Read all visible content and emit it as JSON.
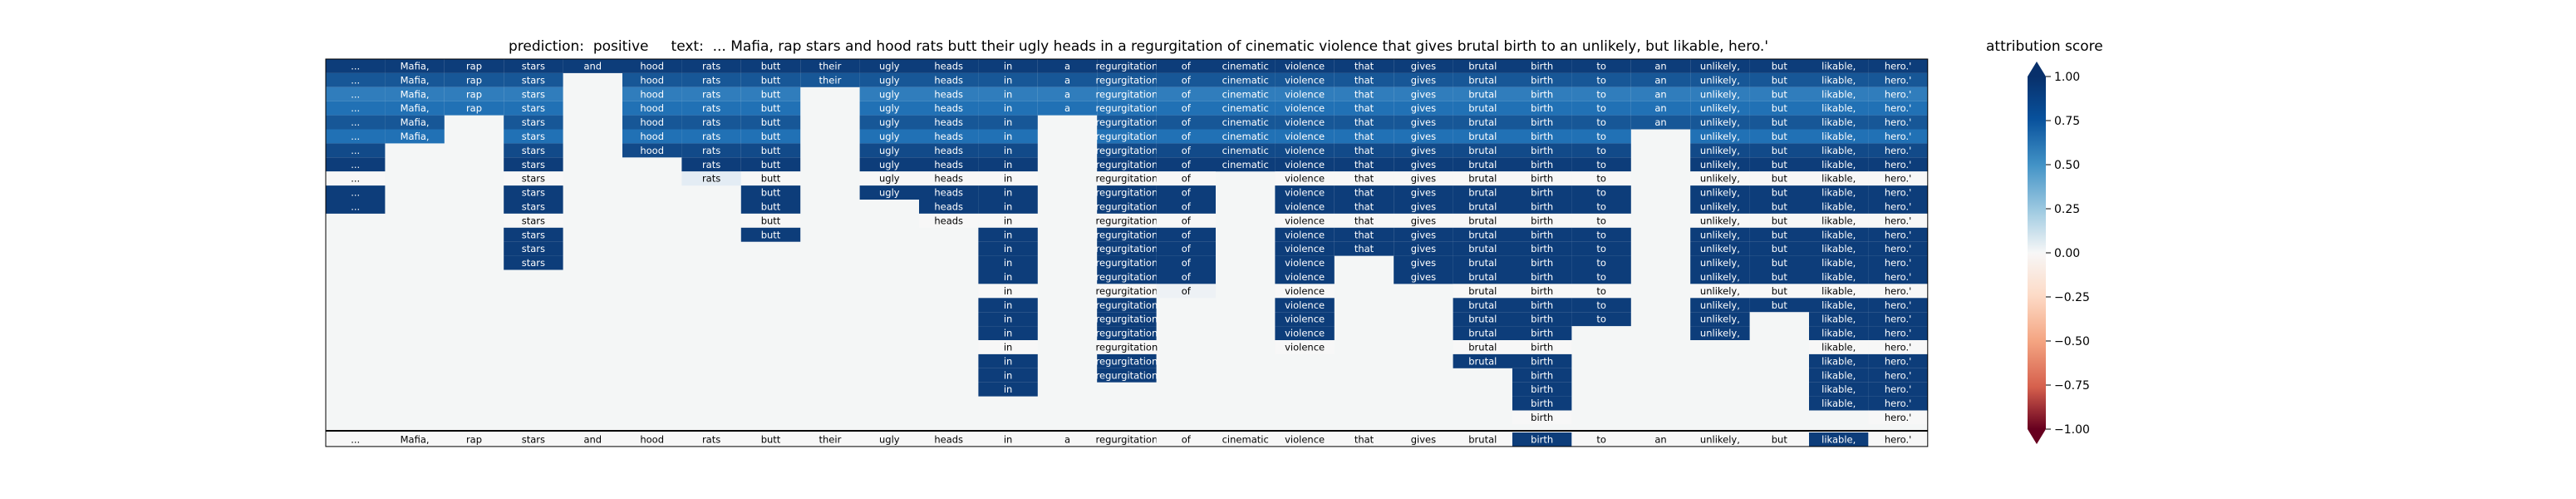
{
  "title": "prediction:  positive     text:  ... Mafia, rap stars and hood rats butt their ugly heads in a regurgitation of cinematic violence that gives brutal birth to an unlikely, but likable, hero.'",
  "colorbar": {
    "label": "attribution score",
    "ticks": [
      "1.00",
      "0.75",
      "0.50",
      "0.25",
      "0.00",
      "−0.25",
      "−0.50",
      "−0.75",
      "−1.00"
    ],
    "range": [
      -1,
      1
    ],
    "colors": {
      "positive": "#08306b",
      "mid": "#f7f7f7",
      "negative": "#67001f"
    }
  },
  "chart_data": {
    "type": "heatmap",
    "title": "prediction:  positive     text:  ... Mafia, rap stars and hood rats butt their ugly heads in a regurgitation of cinematic violence that gives brutal birth to an unlikely, but likable, hero.'",
    "tokens": [
      "...",
      "Mafia,",
      "rap",
      "stars",
      "and",
      "hood",
      "rats",
      "butt",
      "their",
      "ugly",
      "heads",
      "in",
      "a",
      "regurgitation",
      "of",
      "cinematic",
      "violence",
      "that",
      "gives",
      "brutal",
      "birth",
      "to",
      "an",
      "unlikely,",
      "but",
      "likable,",
      "hero.'"
    ],
    "rows": [
      [
        "...:0.95",
        "Mafia,:0.95",
        "rap:0.95",
        "stars:0.95",
        "and:0.95",
        "hood:0.95",
        "rats:0.95",
        "butt:0.95",
        "their:0.95",
        "ugly:0.95",
        "heads:0.95",
        "in:0.95",
        "a:0.95",
        "regurgitation:0.95",
        "of:0.95",
        "cinematic:0.95",
        "violence:0.95",
        "that:0.95",
        "gives:0.95",
        "brutal:0.95",
        "birth:0.95",
        "to:0.95",
        "an:0.95",
        "unlikely,:0.95",
        "but:0.95",
        "likable,:0.95",
        "hero.':0.95"
      ],
      [
        "...:0.85",
        "Mafia,:0.85",
        "rap:0.85",
        "stars:0.85",
        "hood:0.85",
        "rats:0.85",
        "butt:0.85",
        "their:0.85",
        "ugly:0.85",
        "heads:0.85",
        "in:0.85",
        "a:0.85",
        "regurgitation:0.85",
        "of:0.85",
        "cinematic:0.85",
        "violence:0.85",
        "that:0.85",
        "gives:0.85",
        "brutal:0.85",
        "birth:0.85",
        "to:0.85",
        "an:0.85",
        "unlikely,:0.85",
        "but:0.85",
        "likable,:0.85",
        "hero.':0.85"
      ],
      [
        "...:0.7",
        "Mafia,:0.7",
        "rap:0.7",
        "stars:0.7",
        "hood:0.7",
        "rats:0.7",
        "butt:0.7",
        "ugly:0.7",
        "heads:0.7",
        "in:0.7",
        "a:0.7",
        "regurgitation:0.7",
        "of:0.7",
        "cinematic:0.7",
        "violence:0.7",
        "that:0.7",
        "gives:0.7",
        "brutal:0.7",
        "birth:0.7",
        "to:0.7",
        "an:0.7",
        "unlikely,:0.7",
        "but:0.7",
        "likable,:0.7",
        "hero.':0.7"
      ],
      [
        "...:0.75",
        "Mafia,:0.75",
        "rap:0.75",
        "stars:0.75",
        "hood:0.75",
        "rats:0.75",
        "butt:0.75",
        "ugly:0.75",
        "heads:0.75",
        "in:0.75",
        "a:0.75",
        "regurgitation:0.75",
        "of:0.75",
        "cinematic:0.75",
        "violence:0.75",
        "that:0.75",
        "gives:0.75",
        "brutal:0.75",
        "birth:0.75",
        "to:0.75",
        "an:0.75",
        "unlikely,:0.75",
        "but:0.75",
        "likable,:0.75",
        "hero.':0.75"
      ],
      [
        "...:0.85",
        "Mafia,:0.85",
        "stars:0.85",
        "hood:0.85",
        "rats:0.85",
        "butt:0.85",
        "ugly:0.85",
        "heads:0.85",
        "in:0.85",
        "regurgitation:0.85",
        "of:0.85",
        "cinematic:0.85",
        "violence:0.85",
        "that:0.85",
        "gives:0.85",
        "brutal:0.85",
        "birth:0.85",
        "to:0.85",
        "an:0.85",
        "unlikely,:0.85",
        "but:0.85",
        "likable,:0.85",
        "hero.':0.85"
      ],
      [
        "...:0.75",
        "Mafia,:0.75",
        "stars:0.75",
        "hood:0.75",
        "rats:0.75",
        "butt:0.75",
        "ugly:0.75",
        "heads:0.75",
        "in:0.75",
        "regurgitation:0.75",
        "of:0.75",
        "cinematic:0.75",
        "violence:0.75",
        "that:0.75",
        "gives:0.75",
        "brutal:0.75",
        "birth:0.75",
        "to:0.75",
        "unlikely,:0.75",
        "but:0.75",
        "likable,:0.75",
        "hero.':0.75"
      ],
      [
        "...:0.9",
        "stars:0.9",
        "hood:0.9",
        "rats:0.9",
        "butt:0.9",
        "ugly:0.9",
        "heads:0.9",
        "in:0.9",
        "regurgitation:0.9",
        "of:0.9",
        "cinematic:0.9",
        "violence:0.9",
        "that:0.9",
        "gives:0.9",
        "brutal:0.9",
        "birth:0.9",
        "to:0.9",
        "unlikely,:0.9",
        "but:0.9",
        "likable,:0.9",
        "hero.':0.9"
      ],
      [
        "...:0.95",
        "stars:0.95",
        "rats:0.95",
        "butt:0.95",
        "ugly:0.95",
        "heads:0.95",
        "in:0.95",
        "regurgitation:0.95",
        "of:0.95",
        "cinematic:0.95",
        "violence:0.95",
        "that:0.95",
        "gives:0.95",
        "brutal:0.95",
        "birth:0.95",
        "to:0.95",
        "unlikely,:0.95",
        "but:0.95",
        "likable,:0.95",
        "hero.':0.95"
      ],
      [
        "...:0.0",
        "stars:0.0",
        "rats:0.1",
        "butt:0.0",
        "ugly:0.0",
        "heads:0.0",
        "in:0.0",
        "regurgitation:0.0",
        "of:0.0",
        "violence:0.0",
        "that:0.0",
        "gives:0.0",
        "brutal:0.0",
        "birth:0.0",
        "to:0.0",
        "unlikely,:0.0",
        "but:0.0",
        "likable,:0.0",
        "hero.':0.0"
      ],
      [
        "...:0.95",
        "stars:0.95",
        "butt:0.95",
        "ugly:0.95",
        "heads:0.95",
        "in:0.95",
        "regurgitation:0.95",
        "of:0.95",
        "violence:0.95",
        "that:0.95",
        "gives:0.95",
        "brutal:0.95",
        "birth:0.95",
        "to:0.95",
        "unlikely,:0.95",
        "but:0.95",
        "likable,:0.95",
        "hero.':0.95"
      ],
      [
        "...:0.95",
        "stars:0.95",
        "butt:0.95",
        "heads:0.95",
        "in:0.95",
        "regurgitation:0.95",
        "of:0.95",
        "violence:0.95",
        "that:0.95",
        "gives:0.95",
        "brutal:0.95",
        "birth:0.95",
        "to:0.95",
        "unlikely,:0.95",
        "but:0.95",
        "likable,:0.95",
        "hero.':0.95"
      ],
      [
        "stars:0.0",
        "butt:0.0",
        "heads:0.0",
        "in:0.0",
        "regurgitation:0.0",
        "of:0.0",
        "violence:0.0",
        "that:0.0",
        "gives:0.0",
        "brutal:0.0",
        "birth:0.0",
        "to:0.0",
        "unlikely,:0.0",
        "but:0.0",
        "likable,:0.0",
        "hero.':0.0"
      ],
      [
        "stars:0.95",
        "butt:0.95",
        "in:0.95",
        "regurgitation:0.95",
        "of:0.95",
        "violence:0.95",
        "that:0.95",
        "gives:0.95",
        "brutal:0.95",
        "birth:0.95",
        "to:0.95",
        "unlikely,:0.95",
        "but:0.95",
        "likable,:0.95",
        "hero.':0.95"
      ],
      [
        "stars:0.95",
        "in:0.95",
        "regurgitation:0.95",
        "of:0.95",
        "violence:0.95",
        "that:0.95",
        "gives:0.95",
        "brutal:0.95",
        "birth:0.95",
        "to:0.95",
        "unlikely,:0.95",
        "but:0.95",
        "likable,:0.95",
        "hero.':0.95"
      ],
      [
        "stars:0.95",
        "in:0.95",
        "regurgitation:0.95",
        "of:0.95",
        "violence:0.95",
        "gives:0.95",
        "brutal:0.95",
        "birth:0.95",
        "to:0.95",
        "unlikely,:0.95",
        "but:0.95",
        "likable,:0.95",
        "hero.':0.95"
      ],
      [
        "in:0.95",
        "regurgitation:0.95",
        "of:0.95",
        "violence:0.95",
        "gives:0.95",
        "brutal:0.95",
        "birth:0.95",
        "to:0.95",
        "unlikely,:0.95",
        "but:0.95",
        "likable,:0.95",
        "hero.':0.95"
      ],
      [
        "in:0.0",
        "regurgitation:0.0",
        "of:0.05",
        "violence:0.0",
        "brutal:0.0",
        "birth:0.0",
        "to:0.0",
        "unlikely,:0.0",
        "but:0.0",
        "likable,:0.0",
        "hero.':0.0"
      ],
      [
        "in:0.95",
        "regurgitation:0.95",
        "violence:0.95",
        "brutal:0.95",
        "birth:0.95",
        "to:0.95",
        "unlikely,:0.95",
        "but:0.95",
        "likable,:0.95",
        "hero.':0.95"
      ],
      [
        "in:0.95",
        "regurgitation:0.95",
        "violence:0.95",
        "brutal:0.95",
        "birth:0.95",
        "to:0.95",
        "unlikely,:0.95",
        "likable,:0.95",
        "hero.':0.95"
      ],
      [
        "in:0.95",
        "regurgitation:0.95",
        "violence:0.95",
        "brutal:0.95",
        "birth:0.95",
        "unlikely,:0.95",
        "likable,:0.95",
        "hero.':0.95"
      ],
      [
        "in:0.0",
        "regurgitation:0.0",
        "violence:0.0",
        "brutal:0.0",
        "birth:0.0",
        "likable,:0.0",
        "hero.':0.0"
      ],
      [
        "in:0.95",
        "regurgitation:0.95",
        "brutal:0.95",
        "birth:0.95",
        "likable,:0.95",
        "hero.':0.95"
      ],
      [
        "in:0.95",
        "regurgitation:0.95",
        "birth:0.95",
        "likable,:0.95",
        "hero.':0.95"
      ],
      [
        "in:0.95",
        "birth:0.95",
        "likable,:0.95",
        "hero.':0.95"
      ],
      [
        "birth:0.95",
        "likable,:0.95",
        "hero.':0.95"
      ],
      [
        "birth:0.0",
        "hero.':0.0"
      ]
    ],
    "final_row": [
      "...:0.0",
      "Mafia,:0.0",
      "rap:0.0",
      "stars:0.0",
      "and:0.0",
      "hood:0.0",
      "rats:0.0",
      "butt:0.0",
      "their:0.0",
      "ugly:0.0",
      "heads:0.0",
      "in:0.0",
      "a:0.0",
      "regurgitation:0.0",
      "of:0.0",
      "cinematic:0.0",
      "violence:0.0",
      "that:0.0",
      "gives:0.0",
      "brutal:0.0",
      "birth:0.95",
      "to:0.0",
      "an:0.0",
      "unlikely,:0.0",
      "but:0.0",
      "likable,:0.95",
      "hero.':0.0"
    ],
    "zlim": [
      -1,
      1
    ],
    "colorbar_label": "attribution score"
  }
}
